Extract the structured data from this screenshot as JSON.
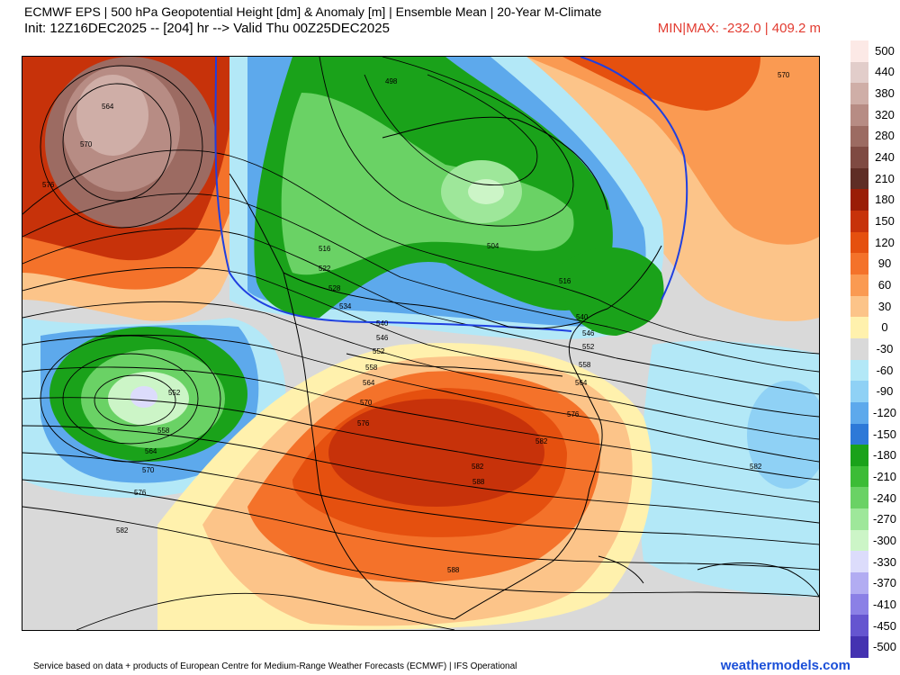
{
  "header": {
    "title_line1": "ECMWF EPS | 500 hPa Geopotential Height [dm] & Anomaly [m] | Ensemble Mean | 20-Year M-Climate",
    "title_line2": "Init: 12Z16DEC2025 -- [204] hr --> Valid Thu 00Z25DEC2025",
    "minmax": "MIN|MAX: -232.0 | 409.2 m"
  },
  "colorbar": {
    "labels": [
      "500",
      "440",
      "380",
      "320",
      "280",
      "240",
      "210",
      "180",
      "150",
      "120",
      "90",
      "60",
      "30",
      "0",
      "-30",
      "-60",
      "-90",
      "-120",
      "-150",
      "-180",
      "-210",
      "-240",
      "-270",
      "-300",
      "-330",
      "-370",
      "-410",
      "-450",
      "-500"
    ],
    "colors": [
      "#fce9e6",
      "#e2cdca",
      "#cfaea7",
      "#b78c84",
      "#9c6b62",
      "#7f4a42",
      "#5f2d25",
      "#9a1d06",
      "#c7320a",
      "#e5500f",
      "#f4722a",
      "#fa9a52",
      "#fcc489",
      "#fff1ad",
      "#d9d9d9",
      "#b3e8f7",
      "#8fd1f5",
      "#5da9ec",
      "#2d79d8",
      "#1aa21a",
      "#3cbc36",
      "#6ad265",
      "#9ee79a",
      "#ccf5c7",
      "#dcdcfb",
      "#b2acf2",
      "#8b80e6",
      "#6555d0",
      "#4432b1"
    ]
  },
  "map": {
    "contour_labels": [
      "564",
      "570",
      "576",
      "498",
      "516",
      "522",
      "528",
      "534",
      "540",
      "546",
      "552",
      "558",
      "564",
      "570",
      "576",
      "582",
      "588",
      "504",
      "516",
      "540",
      "546",
      "552",
      "558",
      "564",
      "576",
      "582",
      "588",
      "552",
      "558",
      "564",
      "570",
      "576",
      "582",
      "582",
      "570"
    ],
    "accent_colors": {
      "zero_line": "#1f3fe0",
      "land_border": "#000000"
    }
  },
  "footer": {
    "source": "Service based on data + products of European Centre for Medium-Range Weather Forecasts (ECMWF) | IFS Operational",
    "brand": "weathermodels.com",
    "brand_color": "#1a4fd8",
    "minmax_color": "#e23b30"
  }
}
